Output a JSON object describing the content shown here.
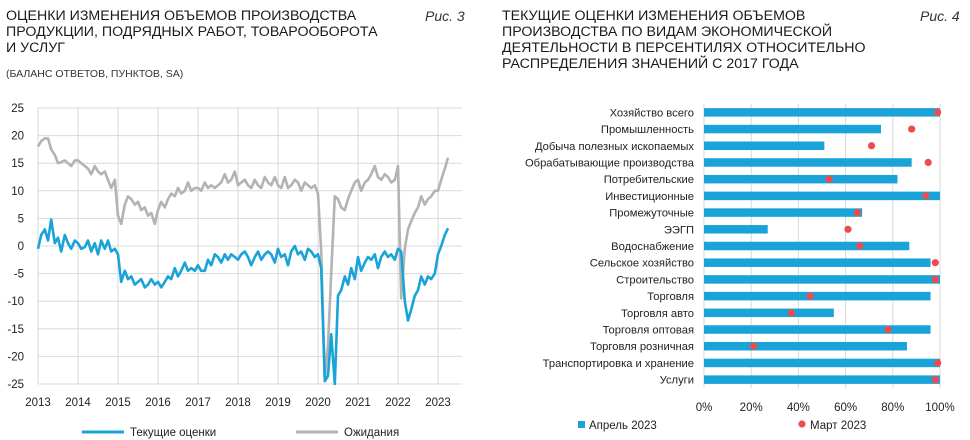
{
  "left": {
    "title_lines": [
      "ОЦЕНКИ ИЗМЕНЕНИЯ ОБЪЕМОВ ПРОИЗВОДСТВА",
      "ПРОДУКЦИИ, ПОДРЯДНЫХ РАБОТ, ТОВАРООБОРОТА",
      "И УСЛУГ"
    ],
    "subtitle": "(БАЛАНС ОТВЕТОВ, ПУНКТОВ, SA)",
    "fig_label": "Рис. 3"
  },
  "right": {
    "title_lines": [
      "ТЕКУЩИЕ ОЦЕНКИ ИЗМЕНЕНИЯ ОБЪЕМОВ",
      "ПРОИЗВОДСТВА ПО ВИДАМ ЭКОНОМИЧЕСКОЙ",
      "ДЕЯТЕЛЬНОСТИ В ПЕРСЕНТИЛЯХ ОТНОСИТЕЛЬНО",
      "РАСПРЕДЕЛЕНИЯ ЗНАЧЕНИЙ С 2017 ГОДА"
    ],
    "fig_label": "Рис. 4"
  },
  "chart_data": [
    {
      "type": "line",
      "title": "ОЦЕНКИ ИЗМЕНЕНИЯ ОБЪЕМОВ ПРОИЗВОДСТВА ПРОДУКЦИИ, ПОДРЯДНЫХ РАБОТ, ТОВАРООБОРОТА И УСЛУГ",
      "subtitle": "(БАЛАНС ОТВЕТОВ, ПУНКТОВ, SA)",
      "ylim": [
        -25,
        25
      ],
      "yticks": [
        25,
        20,
        15,
        10,
        5,
        0,
        -5,
        -10,
        -15,
        -20,
        -25
      ],
      "xlim": [
        2013.0,
        2023.6
      ],
      "xticks": [
        "2013",
        "2014",
        "2015",
        "2016",
        "2017",
        "2018",
        "2019",
        "2020",
        "2021",
        "2022",
        "2023"
      ],
      "grid": true,
      "legend": "bottom",
      "series": [
        {
          "name": "Текущие оценки",
          "color": "#1aa3d9",
          "x": [
            2013.0,
            2013.08,
            2013.17,
            2013.25,
            2013.33,
            2013.42,
            2013.5,
            2013.58,
            2013.67,
            2013.75,
            2013.83,
            2013.92,
            2014.0,
            2014.08,
            2014.17,
            2014.25,
            2014.33,
            2014.42,
            2014.5,
            2014.58,
            2014.67,
            2014.75,
            2014.83,
            2014.92,
            2015.0,
            2015.08,
            2015.17,
            2015.25,
            2015.33,
            2015.42,
            2015.5,
            2015.58,
            2015.67,
            2015.75,
            2015.83,
            2015.92,
            2016.0,
            2016.08,
            2016.17,
            2016.25,
            2016.33,
            2016.42,
            2016.5,
            2016.58,
            2016.67,
            2016.75,
            2016.83,
            2016.92,
            2017.0,
            2017.08,
            2017.17,
            2017.25,
            2017.33,
            2017.42,
            2017.5,
            2017.58,
            2017.67,
            2017.75,
            2017.83,
            2017.92,
            2018.0,
            2018.08,
            2018.17,
            2018.25,
            2018.33,
            2018.42,
            2018.5,
            2018.58,
            2018.67,
            2018.75,
            2018.83,
            2018.92,
            2019.0,
            2019.08,
            2019.17,
            2019.25,
            2019.33,
            2019.42,
            2019.5,
            2019.58,
            2019.67,
            2019.75,
            2019.83,
            2019.92,
            2020.0,
            2020.08,
            2020.17,
            2020.25,
            2020.33,
            2020.42,
            2020.5,
            2020.58,
            2020.67,
            2020.75,
            2020.83,
            2020.92,
            2021.0,
            2021.08,
            2021.17,
            2021.25,
            2021.33,
            2021.42,
            2021.5,
            2021.58,
            2021.67,
            2021.75,
            2021.83,
            2021.92,
            2022.0,
            2022.08,
            2022.17,
            2022.25,
            2022.33,
            2022.42,
            2022.5,
            2022.58,
            2022.67,
            2022.75,
            2022.83,
            2022.92,
            2023.0,
            2023.08,
            2023.17,
            2023.25
          ],
          "y": [
            -0.5,
            2.0,
            3.0,
            1.0,
            4.8,
            0.5,
            1.5,
            -1.0,
            2.0,
            0.5,
            -0.5,
            1.0,
            0.5,
            -0.5,
            -0.2,
            1.0,
            -1.0,
            0.5,
            -1.5,
            1.0,
            -0.5,
            1.0,
            -1.0,
            -0.5,
            -1.5,
            -6.5,
            -4.5,
            -6.0,
            -5.5,
            -7.0,
            -6.5,
            -6.0,
            -7.5,
            -7.0,
            -6.0,
            -7.0,
            -6.5,
            -7.5,
            -6.5,
            -5.5,
            -6.0,
            -4.0,
            -5.5,
            -4.5,
            -3.0,
            -4.5,
            -4.0,
            -4.5,
            -3.5,
            -4.5,
            -4.5,
            -2.5,
            -3.5,
            -1.5,
            -2.0,
            -3.0,
            -1.5,
            -2.5,
            -1.5,
            -2.0,
            -2.5,
            -1.5,
            -1.0,
            -2.0,
            -3.5,
            -2.0,
            -1.0,
            -2.5,
            -1.5,
            -1.0,
            -1.5,
            -3.0,
            -0.5,
            -2.0,
            -1.5,
            -3.5,
            -1.0,
            0.0,
            -1.5,
            -1.0,
            -2.5,
            -0.5,
            -1.0,
            -2.0,
            -1.5,
            -4.0,
            -24.5,
            -23.5,
            -16.0,
            -26.5,
            -9.0,
            -8.0,
            -5.5,
            -7.0,
            -4.0,
            -6.0,
            -2.0,
            -4.5,
            -3.0,
            -2.0,
            -2.5,
            -1.5,
            -4.0,
            -2.0,
            -1.0,
            -2.0,
            -1.5,
            -2.5,
            -0.5,
            -1.0,
            -10.0,
            -13.5,
            -11.5,
            -9.0,
            -8.0,
            -5.5,
            -7.0,
            -5.5,
            -6.0,
            -5.0,
            -1.5,
            0.0,
            2.0,
            3.2
          ]
        },
        {
          "name": "Ожидания",
          "color": "#b3b3b3",
          "x": [
            2013.0,
            2013.08,
            2013.17,
            2013.25,
            2013.33,
            2013.42,
            2013.5,
            2013.58,
            2013.67,
            2013.75,
            2013.83,
            2013.92,
            2014.0,
            2014.08,
            2014.17,
            2014.25,
            2014.33,
            2014.42,
            2014.5,
            2014.58,
            2014.67,
            2014.75,
            2014.83,
            2014.92,
            2015.0,
            2015.08,
            2015.17,
            2015.25,
            2015.33,
            2015.42,
            2015.5,
            2015.58,
            2015.67,
            2015.75,
            2015.83,
            2015.92,
            2016.0,
            2016.08,
            2016.17,
            2016.25,
            2016.33,
            2016.42,
            2016.5,
            2016.58,
            2016.67,
            2016.75,
            2016.83,
            2016.92,
            2017.0,
            2017.08,
            2017.17,
            2017.25,
            2017.33,
            2017.42,
            2017.5,
            2017.58,
            2017.67,
            2017.75,
            2017.83,
            2017.92,
            2018.0,
            2018.08,
            2018.17,
            2018.25,
            2018.33,
            2018.42,
            2018.5,
            2018.58,
            2018.67,
            2018.75,
            2018.83,
            2018.92,
            2019.0,
            2019.08,
            2019.17,
            2019.25,
            2019.33,
            2019.42,
            2019.5,
            2019.58,
            2019.67,
            2019.75,
            2019.83,
            2019.92,
            2020.0,
            2020.08,
            2020.17,
            2020.25,
            2020.33,
            2020.42,
            2020.5,
            2020.58,
            2020.67,
            2020.75,
            2020.83,
            2020.92,
            2021.0,
            2021.08,
            2021.17,
            2021.25,
            2021.33,
            2021.42,
            2021.5,
            2021.58,
            2021.67,
            2021.75,
            2021.83,
            2021.92,
            2022.0,
            2022.08,
            2022.17,
            2022.25,
            2022.33,
            2022.42,
            2022.5,
            2022.58,
            2022.67,
            2022.75,
            2022.83,
            2022.92,
            2023.0,
            2023.08,
            2023.17,
            2023.25
          ],
          "y": [
            18.0,
            19.0,
            19.5,
            19.5,
            17.5,
            16.5,
            15.0,
            15.2,
            15.5,
            15.0,
            14.5,
            15.5,
            15.5,
            15.0,
            14.5,
            14.0,
            13.0,
            14.5,
            13.5,
            13.0,
            13.5,
            12.0,
            10.5,
            12.0,
            5.5,
            4.0,
            7.5,
            9.0,
            8.5,
            7.5,
            8.0,
            6.5,
            7.0,
            5.5,
            6.0,
            4.0,
            6.5,
            8.0,
            7.0,
            8.5,
            9.5,
            9.0,
            10.5,
            9.5,
            10.0,
            11.5,
            10.0,
            10.5,
            10.5,
            10.0,
            11.5,
            10.5,
            11.0,
            10.5,
            11.0,
            11.5,
            13.0,
            11.5,
            12.0,
            13.5,
            11.0,
            11.5,
            12.0,
            11.0,
            10.5,
            12.0,
            11.0,
            10.5,
            12.5,
            11.5,
            11.0,
            12.5,
            11.0,
            10.5,
            12.5,
            10.5,
            11.0,
            12.0,
            11.5,
            10.0,
            11.5,
            11.0,
            10.5,
            11.0,
            9.5,
            -1.0,
            -24.0,
            -18.0,
            -5.0,
            9.0,
            8.5,
            7.0,
            6.5,
            8.5,
            10.0,
            11.5,
            12.0,
            10.0,
            11.5,
            12.0,
            13.0,
            14.5,
            12.5,
            12.0,
            13.0,
            12.5,
            11.5,
            12.0,
            14.5,
            -9.5,
            -0.5,
            3.0,
            4.5,
            6.0,
            7.0,
            9.0,
            7.5,
            8.5,
            9.0,
            10.0,
            10.0,
            12.0,
            14.0,
            16.0
          ]
        }
      ]
    },
    {
      "type": "bar",
      "orientation": "horizontal",
      "title": "ТЕКУЩИЕ ОЦЕНКИ ИЗМЕНЕНИЯ ОБЪЕМОВ ПРОИЗВОДСТВА ПО ВИДАМ ЭКОНОМИЧЕСКОЙ ДЕЯТЕЛЬНОСТИ В ПЕРСЕНТИЛЯХ ОТНОСИТЕЛЬНО РАСПРЕДЕЛЕНИЯ ЗНАЧЕНИЙ С 2017 ГОДА",
      "categories": [
        "Хозяйство всего",
        "Промышленность",
        "Добыча полезных ископаемых",
        "Обрабатывающие производства",
        "Потребительские",
        "Инвестиционные",
        "Промежуточные",
        "ЭЭГП",
        "Водоснабжение",
        "Сельское хозяйство",
        "Строительство",
        "Торговля",
        "Торговля авто",
        "Торговля оптовая",
        "Торговля розничная",
        "Транспортировка и хранение",
        "Услуги"
      ],
      "xlim": [
        0,
        100
      ],
      "xticks": [
        "0%",
        "20%",
        "40%",
        "60%",
        "80%",
        "100%"
      ],
      "grid": true,
      "legend": "bottom",
      "series": [
        {
          "name": "Апрель 2023",
          "color": "#1aa3d9",
          "marker": "square",
          "values": [
            100,
            75,
            51,
            88,
            82,
            100,
            67,
            27,
            87,
            96,
            100,
            96,
            55,
            96,
            86,
            100,
            100
          ]
        },
        {
          "name": "Март 2023",
          "color": "#ef4b4b",
          "marker": "circle",
          "values": [
            99,
            88,
            71,
            95,
            53,
            94,
            65,
            61,
            66,
            98,
            98,
            45,
            37,
            78,
            21,
            99,
            98
          ]
        }
      ]
    }
  ]
}
